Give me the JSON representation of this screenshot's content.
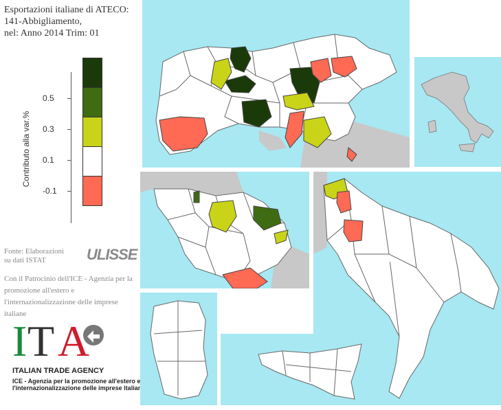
{
  "title": {
    "line1": "Esportazioni italiane di ATECO:",
    "line2": "141-Abbigliamento,",
    "line3": "nel: Anno 2014 Trim: 01"
  },
  "legend": {
    "axis_label": "Contributo alla var.%",
    "ticks": [
      "0.5",
      "0.3",
      "0.1",
      "-0.1"
    ],
    "colors": [
      "#1b3a0a",
      "#3f6b12",
      "#c9d418",
      "#ffffff",
      "#ff6a55"
    ]
  },
  "source": {
    "line1": "Fonte: Elaborazioni",
    "line2": "su dati ISTAT",
    "brand": "ULISSE"
  },
  "patrocinio": {
    "line1": "Con il Patrocinio dell'ICE - Agenzia per la",
    "line2": "promozione all'estero e",
    "line3": "l'internazionalizzazione delle imprese",
    "line4": "italiane"
  },
  "logo": {
    "mark": "ITA",
    "name": "ITALIAN TRADE AGENCY",
    "desc1": "ICE - Agenzia per la promozione all'estero e",
    "desc2": "l'internazionalizzazione delle imprese italiane"
  },
  "colors": {
    "sea": "#a7e8f2",
    "land_other": "#c8c8c8",
    "border": "#666666"
  },
  "map_panels": [
    {
      "name": "north-italy"
    },
    {
      "name": "italy-overview"
    },
    {
      "name": "central-italy"
    },
    {
      "name": "south-italy"
    },
    {
      "name": "sardinia"
    },
    {
      "name": "sicily"
    }
  ]
}
